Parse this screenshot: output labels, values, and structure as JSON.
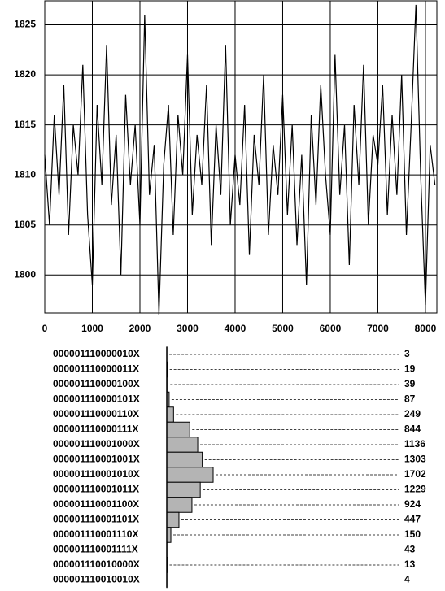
{
  "chart_data": [
    {
      "type": "line",
      "x": [
        0,
        100,
        200,
        300,
        400,
        500,
        600,
        700,
        800,
        900,
        1000,
        1100,
        1200,
        1300,
        1400,
        1500,
        1600,
        1700,
        1800,
        1900,
        2000,
        2100,
        2200,
        2300,
        2400,
        2500,
        2600,
        2700,
        2800,
        2900,
        3000,
        3100,
        3200,
        3300,
        3400,
        3500,
        3600,
        3700,
        3800,
        3900,
        4000,
        4100,
        4200,
        4300,
        4400,
        4500,
        4600,
        4700,
        4800,
        4900,
        5000,
        5100,
        5200,
        5300,
        5400,
        5500,
        5600,
        5700,
        5800,
        5900,
        6000,
        6100,
        6200,
        6300,
        6400,
        6500,
        6600,
        6700,
        6800,
        6900,
        7000,
        7100,
        7200,
        7300,
        7400,
        7500,
        7600,
        7700,
        7800,
        7900,
        8000,
        8100,
        8200
      ],
      "series": [
        {
          "color": "#000000",
          "values": [
            1812,
            1805,
            1816,
            1808,
            1819,
            1804,
            1815,
            1810,
            1821,
            1806,
            1799,
            1817,
            1809,
            1823,
            1807,
            1814,
            1800,
            1818,
            1809,
            1815,
            1805,
            1826,
            1808,
            1813,
            1796,
            1811,
            1817,
            1804,
            1816,
            1810,
            1822,
            1806,
            1814,
            1809,
            1819,
            1803,
            1815,
            1808,
            1823,
            1805,
            1812,
            1807,
            1817,
            1802,
            1814,
            1809,
            1820,
            1804,
            1813,
            1808,
            1818,
            1806,
            1815,
            1803,
            1812,
            1799,
            1816,
            1807,
            1819,
            1810,
            1804,
            1822,
            1808,
            1815,
            1801,
            1817,
            1809,
            1821,
            1805,
            1814,
            1811,
            1819,
            1806,
            1816,
            1808,
            1820,
            1804,
            1815,
            1827,
            1810,
            1797,
            1813,
            1809
          ]
        }
      ],
      "xlim": [
        0,
        8240
      ],
      "ylim": [
        1796.2,
        1827.4
      ],
      "xticks": [
        0,
        1000,
        2000,
        3000,
        4000,
        5000,
        6000,
        7000,
        8000
      ],
      "yticks": [
        1800,
        1805,
        1810,
        1815,
        1820,
        1825
      ],
      "grid": true
    },
    {
      "type": "hbar",
      "categories": [
        "000001110000010X",
        "000001110000011X",
        "000001110000100X",
        "000001110000101X",
        "000001110000110X",
        "000001110000111X",
        "000001110001000X",
        "000001110001001X",
        "000001110001010X",
        "000001110001011X",
        "000001110001100X",
        "000001110001101X",
        "000001110001110X",
        "000001110001111X",
        "000001110010000X",
        "000001110010010X"
      ],
      "values": [
        3,
        19,
        39,
        87,
        249,
        844,
        1136,
        1303,
        1702,
        1229,
        924,
        447,
        150,
        43,
        13,
        4
      ],
      "color": "#b4b4b4"
    }
  ]
}
